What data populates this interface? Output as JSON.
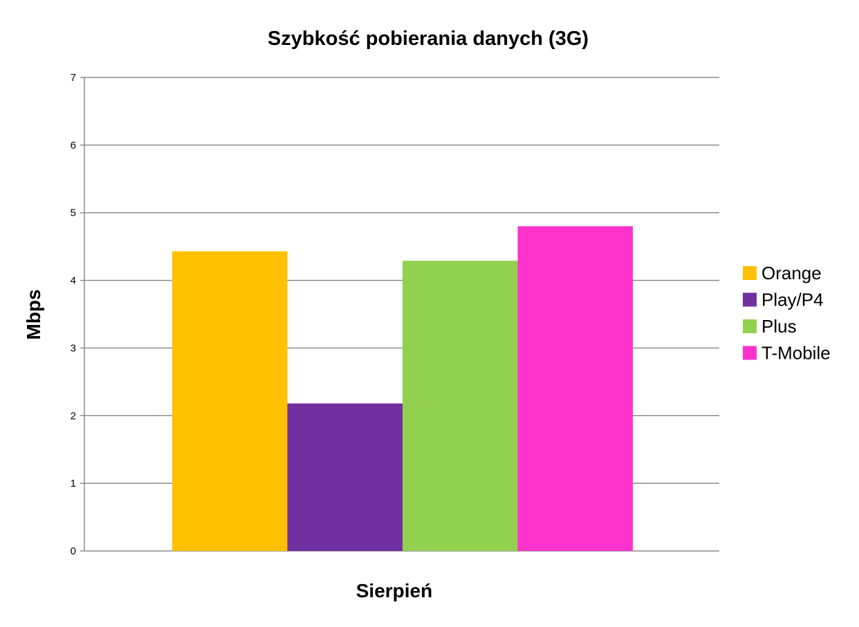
{
  "chart_data": {
    "type": "bar",
    "title": "Szybkość pobierania danych (3G)",
    "xlabel": "Sierpień",
    "ylabel": "Mbps",
    "categories": [
      "Sierpień"
    ],
    "series": [
      {
        "name": "Orange",
        "values": [
          4.43
        ],
        "color": "#FFC000"
      },
      {
        "name": "Play/P4",
        "values": [
          2.18
        ],
        "color": "#7030A0"
      },
      {
        "name": "Plus",
        "values": [
          4.29
        ],
        "color": "#92D050"
      },
      {
        "name": "T-Mobile",
        "values": [
          4.8
        ],
        "color": "#FF33CC"
      }
    ],
    "ylim": [
      0,
      7
    ],
    "yticks": [
      "0",
      "1",
      "2",
      "3",
      "4",
      "5",
      "6",
      "7"
    ],
    "grid": true,
    "legend_position": "right"
  }
}
